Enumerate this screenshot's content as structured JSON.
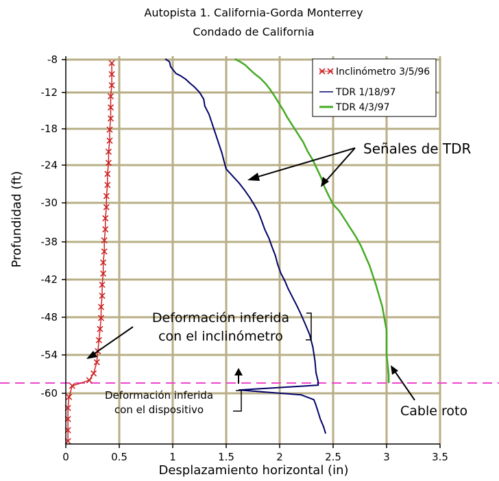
{
  "chart_data": {
    "type": "line",
    "title": "Autopista 1. California-Gorda Monterrey",
    "subtitle": "Condado de California",
    "xlabel": "Desplazamiento horizontal (in)",
    "ylabel": "Profundidad  (ft)",
    "xlim": [
      0,
      3.5
    ],
    "ylim": [
      -64,
      -8
    ],
    "x_ticks": [
      0,
      0.5,
      1,
      1.5,
      2,
      2.5,
      3,
      3.5
    ],
    "x_tick_labels": [
      "0",
      "0.5",
      "1",
      "1.5",
      "2",
      "2.5",
      "3",
      "3.5"
    ],
    "y_tick_labels": [
      "-8",
      "-12",
      "-18",
      "-24",
      "-30",
      "-38",
      "-42",
      "-48",
      "-54",
      "-60"
    ],
    "grid": true,
    "legend_position": "top-right",
    "series": [
      {
        "name": "Inclinómetro 3/5/96",
        "color": "#cc2222",
        "marker": "x",
        "points": [
          [
            0.43,
            -9
          ],
          [
            0.43,
            -10.6
          ],
          [
            0.43,
            -12.2
          ],
          [
            0.42,
            -13.8
          ],
          [
            0.42,
            -15.4
          ],
          [
            0.42,
            -17
          ],
          [
            0.41,
            -18.6
          ],
          [
            0.41,
            -20.2
          ],
          [
            0.4,
            -21.8
          ],
          [
            0.4,
            -23.4
          ],
          [
            0.39,
            -25
          ],
          [
            0.39,
            -26.6
          ],
          [
            0.38,
            -28.2
          ],
          [
            0.38,
            -29.8
          ],
          [
            0.37,
            -31.4
          ],
          [
            0.37,
            -33
          ],
          [
            0.36,
            -34.6
          ],
          [
            0.36,
            -36.2
          ],
          [
            0.35,
            -37.8
          ],
          [
            0.35,
            -39.4
          ],
          [
            0.34,
            -41
          ],
          [
            0.34,
            -42.6
          ],
          [
            0.33,
            -44.2
          ],
          [
            0.33,
            -45.8
          ],
          [
            0.32,
            -47.4
          ],
          [
            0.31,
            -49
          ],
          [
            0.3,
            -50.6
          ],
          [
            0.29,
            -52.2
          ],
          [
            0.26,
            -53.8
          ],
          [
            0.22,
            -54.8
          ],
          [
            0.06,
            -55.6
          ],
          [
            0.03,
            -57.2
          ],
          [
            0.02,
            -58.8
          ],
          [
            0.02,
            -60.4
          ],
          [
            0.02,
            -62
          ],
          [
            0.02,
            -63.6
          ]
        ]
      },
      {
        "name": "TDR 1/18/97",
        "color": "#000066",
        "points": [
          [
            0.93,
            -8.4
          ],
          [
            0.97,
            -8.8
          ],
          [
            0.98,
            -9.5
          ],
          [
            1.0,
            -9.9
          ],
          [
            1.03,
            -10.5
          ],
          [
            1.07,
            -10.8
          ],
          [
            1.12,
            -11.3
          ],
          [
            1.16,
            -11.9
          ],
          [
            1.2,
            -12.4
          ],
          [
            1.25,
            -13.2
          ],
          [
            1.29,
            -14.2
          ],
          [
            1.3,
            -15.2
          ],
          [
            1.34,
            -16.4
          ],
          [
            1.37,
            -17.8
          ],
          [
            1.4,
            -19.2
          ],
          [
            1.43,
            -20.6
          ],
          [
            1.46,
            -22
          ],
          [
            1.48,
            -23.2
          ],
          [
            1.5,
            -24.3
          ],
          [
            1.56,
            -25.3
          ],
          [
            1.62,
            -26.3
          ],
          [
            1.67,
            -27.3
          ],
          [
            1.72,
            -28.4
          ],
          [
            1.76,
            -29.4
          ],
          [
            1.8,
            -30.5
          ],
          [
            1.83,
            -31.7
          ],
          [
            1.86,
            -33
          ],
          [
            1.9,
            -34.3
          ],
          [
            1.93,
            -35.6
          ],
          [
            1.96,
            -36.8
          ],
          [
            1.98,
            -38
          ],
          [
            2.01,
            -39.3
          ],
          [
            2.05,
            -40.5
          ],
          [
            2.08,
            -41.6
          ],
          [
            2.12,
            -42.8
          ],
          [
            2.16,
            -44
          ],
          [
            2.2,
            -45.3
          ],
          [
            2.24,
            -46.7
          ],
          [
            2.28,
            -48.2
          ],
          [
            2.31,
            -50
          ],
          [
            2.33,
            -52
          ],
          [
            2.34,
            -53.7
          ],
          [
            2.36,
            -55
          ],
          [
            2.36,
            -55.5
          ],
          [
            1.62,
            -56.2
          ],
          [
            2.2,
            -56.9
          ],
          [
            2.32,
            -57.6
          ],
          [
            2.34,
            -58.4
          ],
          [
            2.36,
            -59.4
          ],
          [
            2.38,
            -60.4
          ],
          [
            2.41,
            -61.5
          ],
          [
            2.43,
            -62.5
          ]
        ]
      },
      {
        "name": "TDR 4/3/97",
        "color": "#44aa22",
        "points": [
          [
            1.58,
            -8.4
          ],
          [
            1.63,
            -8.8
          ],
          [
            1.68,
            -9.3
          ],
          [
            1.72,
            -9.9
          ],
          [
            1.77,
            -10.6
          ],
          [
            1.82,
            -11.2
          ],
          [
            1.87,
            -12
          ],
          [
            1.91,
            -12.8
          ],
          [
            1.95,
            -13.7
          ],
          [
            1.99,
            -14.7
          ],
          [
            2.03,
            -15.7
          ],
          [
            2.07,
            -16.8
          ],
          [
            2.12,
            -18
          ],
          [
            2.17,
            -19.2
          ],
          [
            2.22,
            -20.4
          ],
          [
            2.26,
            -21.7
          ],
          [
            2.31,
            -23
          ],
          [
            2.35,
            -24.3
          ],
          [
            2.39,
            -25.6
          ],
          [
            2.42,
            -26.9
          ],
          [
            2.46,
            -28.2
          ],
          [
            2.5,
            -29.4
          ],
          [
            2.56,
            -30.4
          ],
          [
            2.61,
            -31.6
          ],
          [
            2.66,
            -32.8
          ],
          [
            2.71,
            -34
          ],
          [
            2.76,
            -35.4
          ],
          [
            2.8,
            -36.8
          ],
          [
            2.84,
            -38.2
          ],
          [
            2.87,
            -39.6
          ],
          [
            2.9,
            -41
          ],
          [
            2.93,
            -42.6
          ],
          [
            2.96,
            -44.2
          ],
          [
            2.98,
            -45.9
          ],
          [
            3.0,
            -47.6
          ],
          [
            3.0,
            -49.3
          ],
          [
            3.0,
            -51
          ],
          [
            3.01,
            -52.6
          ],
          [
            3.02,
            -54
          ],
          [
            3.02,
            -55.2
          ]
        ]
      }
    ],
    "reference_line": {
      "y": -55.2,
      "color": "#ee44cc",
      "style": "dashed"
    },
    "annotations": {
      "tdr_signals": "Señales de TDR",
      "inclinometer_deformation_line1": "Deformación inferida",
      "inclinometer_deformation_line2": "con el inclinómetro",
      "device_deformation_line1": "Deformación inferida",
      "device_deformation_line2": "con el dispositivo",
      "broken_cable": "Cable roto"
    }
  }
}
